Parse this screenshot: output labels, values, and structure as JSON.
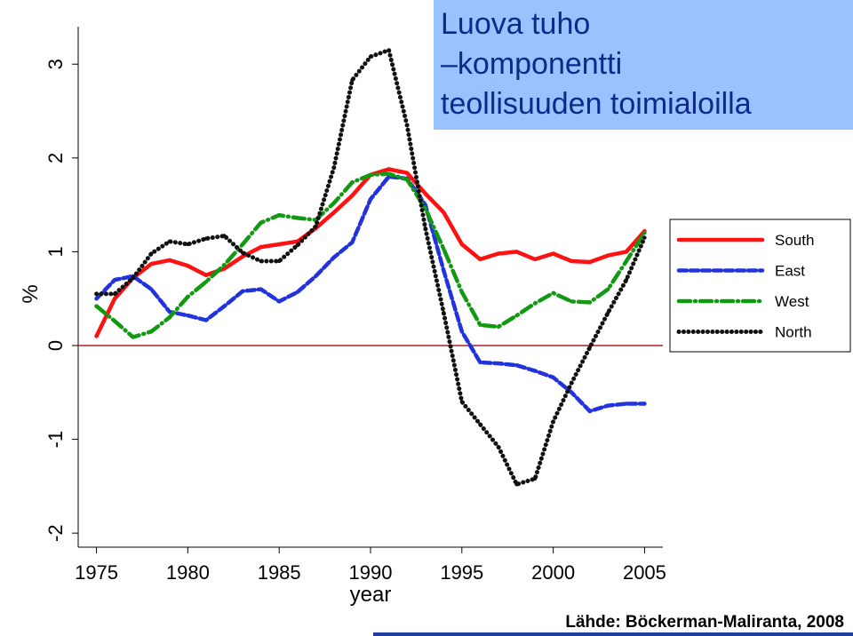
{
  "title_lines": [
    "Luova tuho",
    "–komponentti",
    "teollisuuden toimialoilla"
  ],
  "source": "Lähde: Böckerman-Maliranta, 2008",
  "chart_data": {
    "type": "line",
    "xlabel": "year",
    "ylabel": "%",
    "xlim": [
      1974,
      2006
    ],
    "ylim": [
      -2.15,
      3.4
    ],
    "x_ticks": [
      1975,
      1980,
      1985,
      1990,
      1995,
      2000,
      2005
    ],
    "y_ticks": [
      -2,
      -1,
      0,
      1,
      2,
      3
    ],
    "x_tick_labels": [
      "1975",
      "1980",
      "1985",
      "1990",
      "1995",
      "2000",
      "2005"
    ],
    "y_tick_labels": [
      "-2",
      "-1",
      "0",
      "1",
      "2",
      "3"
    ],
    "reference_line": 0,
    "grid": false,
    "legend_position": "right",
    "x": [
      1975,
      1976,
      1977,
      1978,
      1979,
      1980,
      1981,
      1982,
      1983,
      1984,
      1985,
      1986,
      1987,
      1988,
      1989,
      1990,
      1991,
      1992,
      1993,
      1994,
      1995,
      1996,
      1997,
      1998,
      1999,
      2000,
      2001,
      2002,
      2003,
      2004,
      2005
    ],
    "series": [
      {
        "name": "South",
        "color": "#ff1111",
        "style": "solid",
        "values": [
          0.1,
          0.5,
          0.72,
          0.87,
          0.91,
          0.85,
          0.75,
          0.82,
          0.95,
          1.05,
          1.08,
          1.11,
          1.25,
          1.42,
          1.6,
          1.82,
          1.88,
          1.84,
          1.62,
          1.42,
          1.08,
          0.92,
          0.98,
          1.0,
          0.92,
          0.98,
          0.9,
          0.89,
          0.96,
          1.0,
          1.22
        ]
      },
      {
        "name": "East",
        "color": "#2233dd",
        "style": "dashed",
        "values": [
          0.5,
          0.7,
          0.74,
          0.6,
          0.36,
          0.32,
          0.27,
          0.42,
          0.58,
          0.6,
          0.47,
          0.57,
          0.74,
          0.94,
          1.1,
          1.56,
          1.8,
          1.78,
          1.5,
          0.8,
          0.15,
          -0.18,
          -0.19,
          -0.21,
          -0.27,
          -0.34,
          -0.5,
          -0.7,
          -0.64,
          -0.62,
          -0.62
        ]
      },
      {
        "name": "West",
        "color": "#119911",
        "style": "dash-dot",
        "values": [
          0.42,
          0.26,
          0.09,
          0.15,
          0.3,
          0.52,
          0.68,
          0.86,
          1.08,
          1.31,
          1.39,
          1.36,
          1.34,
          1.52,
          1.74,
          1.82,
          1.83,
          1.77,
          1.46,
          1.03,
          0.57,
          0.22,
          0.2,
          0.32,
          0.45,
          0.56,
          0.47,
          0.46,
          0.6,
          0.9,
          1.2
        ]
      },
      {
        "name": "North",
        "color": "#111111",
        "style": "dotted",
        "values": [
          0.55,
          0.55,
          0.72,
          0.98,
          1.11,
          1.08,
          1.14,
          1.17,
          0.99,
          0.9,
          0.9,
          1.07,
          1.27,
          1.9,
          2.83,
          3.08,
          3.15,
          2.35,
          1.25,
          0.35,
          -0.6,
          -0.84,
          -1.08,
          -1.48,
          -1.42,
          -0.81,
          -0.4,
          -0.02,
          0.35,
          0.7,
          1.15
        ]
      }
    ]
  }
}
